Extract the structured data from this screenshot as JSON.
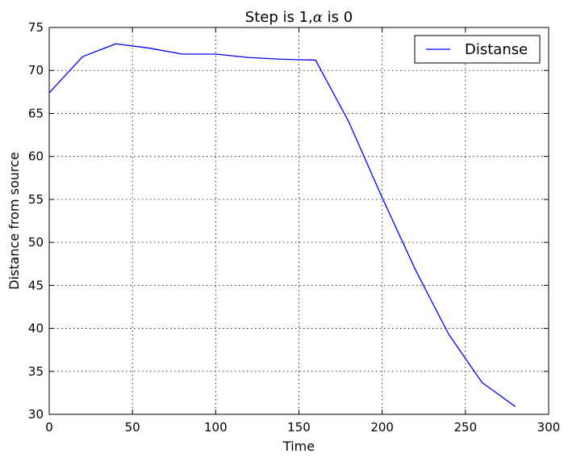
{
  "chart_data": {
    "type": "line",
    "title_prefix": "Step is 1,",
    "title_symbol": "α",
    "title_suffix": " is 0",
    "xlabel": "Time",
    "ylabel": "Distance from source",
    "xlim": [
      0,
      300
    ],
    "ylim": [
      30,
      75
    ],
    "xticks": [
      0,
      50,
      100,
      150,
      200,
      250,
      300
    ],
    "yticks": [
      30,
      35,
      40,
      45,
      50,
      55,
      60,
      65,
      70,
      75
    ],
    "grid": true,
    "legend_position": "top-right",
    "series": [
      {
        "name": "Distanse",
        "color": "#0000ff",
        "x": [
          0,
          20,
          40,
          60,
          80,
          100,
          120,
          140,
          160,
          180,
          200,
          220,
          240,
          260,
          280
        ],
        "y": [
          67.4,
          71.6,
          73.1,
          72.6,
          71.9,
          71.9,
          71.5,
          71.3,
          71.2,
          64.0,
          55.2,
          46.8,
          39.3,
          33.7,
          30.9
        ]
      }
    ]
  }
}
